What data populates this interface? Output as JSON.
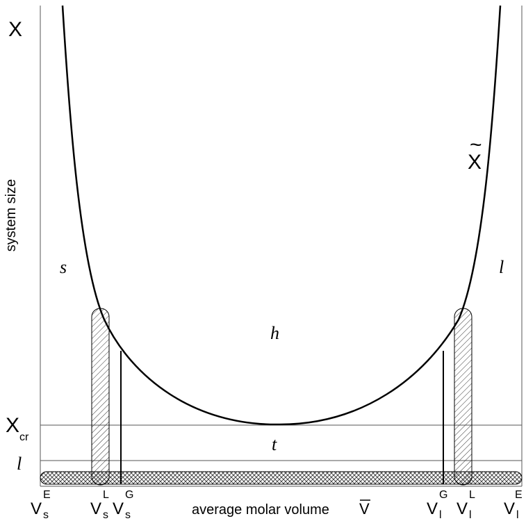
{
  "axes": {
    "ylabel": "system size",
    "xlabel": "average molar volume",
    "xlabel_symbol": "V",
    "ylabel_symbol": "X"
  },
  "curve_label": "X",
  "curve_label_mark": "~",
  "regions": {
    "solid": "s",
    "liquid": "l",
    "heterophase": "h",
    "transition": "t"
  },
  "levels": {
    "critical": {
      "base": "X",
      "sub": "cr"
    },
    "lower": "l"
  },
  "x_ticks": {
    "vs_e": {
      "base": "V",
      "sub": "s",
      "sup": "E"
    },
    "vs_l": {
      "base": "V",
      "sub": "s",
      "sup": "L"
    },
    "vs_g": {
      "base": "V",
      "sub": "s",
      "sup": "G"
    },
    "vl_g": {
      "base": "V",
      "sub": "l",
      "sup": "G"
    },
    "vl_l": {
      "base": "V",
      "sub": "l",
      "sup": "L"
    },
    "vl_e": {
      "base": "V",
      "sub": "l",
      "sup": "E"
    }
  },
  "colors": {
    "line": "#000000",
    "frame": "#555555",
    "hatch": "#333333",
    "background": "#ffffff"
  }
}
